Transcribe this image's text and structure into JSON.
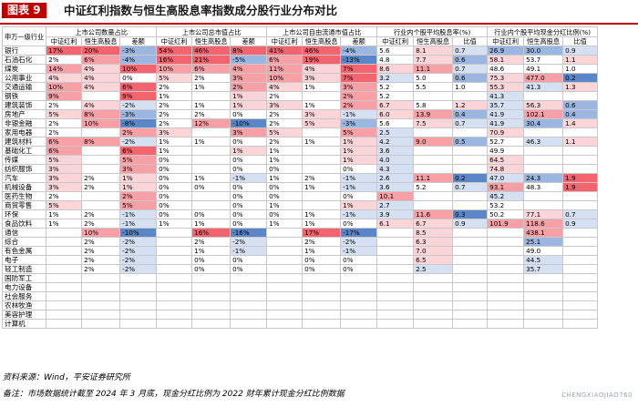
{
  "figure": {
    "label": "图表 9",
    "title": "中证红利指数与恒生高股息率指数成分股行业分布对比"
  },
  "table": {
    "corner_header": "申万一级行业",
    "groups": [
      "上市公司数量占比",
      "上市公司总市值占比",
      "上市公司自由流通市值占比",
      "行业内个股平均股息率(%)",
      "行业内个股平均现金分红比例(%)"
    ],
    "subheaders": [
      "中证红利",
      "恒生高股息",
      "差额",
      "中证红利",
      "恒生高股息",
      "差额",
      "中证红利",
      "恒生高股息",
      "差额",
      "中证红利",
      "恒生高股息",
      "比值",
      "中证红利",
      "恒生高股息",
      "比值"
    ],
    "rows": [
      {
        "industry": "银行",
        "cells": [
          "17%",
          "20%",
          "-3%",
          "54%",
          "46%",
          "8%",
          "41%",
          "46%",
          "-4%",
          "5.6",
          "8.1",
          "0.7",
          "26.9",
          "30.0",
          "0.9"
        ]
      },
      {
        "industry": "石油石化",
        "cells": [
          "2%",
          "6%",
          "-4%",
          "16%",
          "21%",
          "-5%",
          "6%",
          "19%",
          "-13%",
          "4.8",
          "7.7",
          "0.6",
          "58.1",
          "53.7",
          "1.1"
        ]
      },
      {
        "industry": "煤炭",
        "cells": [
          "14%",
          "4%",
          "10%",
          "10%",
          "6%",
          "4%",
          "11%",
          "4%",
          "7%",
          "8.6",
          "11.1",
          "0.7",
          "48.6",
          "49.1",
          "1.0"
        ]
      },
      {
        "industry": "公用事业",
        "cells": [
          "4%",
          "4%",
          "0%",
          "5%",
          "2%",
          "3%",
          "10%",
          "3%",
          "7%",
          "3.2",
          "5.0",
          "0.6",
          "75.3",
          "477.0",
          "0.2"
        ]
      },
      {
        "industry": "交通运输",
        "cells": [
          "10%",
          "4%",
          "6%",
          "2%",
          "1%",
          "2%",
          "4%",
          "1%",
          "3%",
          "5.2",
          "5.5",
          "1.0",
          "55.3",
          "41.3",
          "1.3"
        ]
      },
      {
        "industry": "钢铁",
        "cells": [
          "9%",
          "",
          "9%",
          "1%",
          "",
          "1%",
          "2%",
          "",
          "2%",
          "5.2",
          "",
          "",
          "41.3",
          "",
          ""
        ]
      },
      {
        "industry": "建筑装饰",
        "cells": [
          "2%",
          "4%",
          "-2%",
          "2%",
          "1%",
          "1%",
          "3%",
          "1%",
          "2%",
          "6.7",
          "5.8",
          "1.2",
          "35.7",
          "56.3",
          "0.6"
        ]
      },
      {
        "industry": "房地产",
        "cells": [
          "5%",
          "8%",
          "-3%",
          "2%",
          "2%",
          "0%",
          "2%",
          "3%",
          "-1%",
          "6.0",
          "13.9",
          "0.4",
          "41.9",
          "102.1",
          "0.4"
        ]
      },
      {
        "industry": "非银金融",
        "cells": [
          "2%",
          "10%",
          "-8%",
          "2%",
          "12%",
          "-10%",
          "2%",
          "5%",
          "-3%",
          "5.6",
          "7.5",
          "0.7",
          "41.9",
          "30.4",
          "1.4"
        ]
      },
      {
        "industry": "家用电器",
        "cells": [
          "2%",
          "",
          "2%",
          "3%",
          "",
          "3%",
          "5%",
          "",
          "5%",
          "2.5",
          "",
          "",
          "70.9",
          "",
          ""
        ]
      },
      {
        "industry": "建筑材料",
        "cells": [
          "6%",
          "8%",
          "-2%",
          "1%",
          "1%",
          "0%",
          "2%",
          "1%",
          "1%",
          "4.2",
          "9.0",
          "0.5",
          "52.7",
          "46.3",
          "1.1"
        ]
      },
      {
        "industry": "基础化工",
        "cells": [
          "6%",
          "",
          "6%",
          "1%",
          "",
          "1%",
          "1%",
          "",
          "1%",
          "3.6",
          "",
          "",
          "49.9",
          "",
          ""
        ]
      },
      {
        "industry": "传媒",
        "cells": [
          "5%",
          "",
          "5%",
          "0%",
          "",
          "0%",
          "1%",
          "",
          "1%",
          "4.0",
          "",
          "",
          "64.5",
          "",
          ""
        ]
      },
      {
        "industry": "纺织服饰",
        "cells": [
          "3%",
          "",
          "3%",
          "0%",
          "",
          "0%",
          "0%",
          "",
          "0%",
          "4.3",
          "",
          "",
          "74.8",
          "",
          ""
        ]
      },
      {
        "industry": "汽车",
        "cells": [
          "3%",
          "2%",
          "1%",
          "0%",
          "1%",
          "-1%",
          "1%",
          "2%",
          "-1%",
          "2.6",
          "11.1",
          "0.2",
          "47.0",
          "24.3",
          "1.9"
        ]
      },
      {
        "industry": "机械设备",
        "cells": [
          "3%",
          "2%",
          "1%",
          "0%",
          "0%",
          "0%",
          "0%",
          "1%",
          "-1%",
          "3.6",
          "5.2",
          "0.7",
          "93.1",
          "48.3",
          "1.9"
        ]
      },
      {
        "industry": "医药生物",
        "cells": [
          "2%",
          "",
          "2%",
          "0%",
          "",
          "0%",
          "0%",
          "",
          "0%",
          "10.1",
          "",
          "",
          "45.2",
          "",
          ""
        ]
      },
      {
        "industry": "商贸零售",
        "cells": [
          "5%",
          "",
          "5%",
          "0%",
          "",
          "0%",
          "1%",
          "",
          "1%",
          "2.7",
          "",
          "",
          "53.2",
          "",
          ""
        ]
      },
      {
        "industry": "环保",
        "cells": [
          "1%",
          "2%",
          "-1%",
          "0%",
          "0%",
          "0%",
          "0%",
          "1%",
          "-1%",
          "3.9",
          "11.6",
          "0.3",
          "50.2",
          "77.1",
          "0.7"
        ]
      },
      {
        "industry": "食品饮料",
        "cells": [
          "1%",
          "2%",
          "-1%",
          "1%",
          "1%",
          "0%",
          "1%",
          "1%",
          "0%",
          "6.1",
          "6.7",
          "0.9",
          "101.9",
          "118.6",
          "0.9"
        ]
      },
      {
        "industry": "通信",
        "cells": [
          "",
          "10%",
          "-10%",
          "",
          "16%",
          "-16%",
          "",
          "17%",
          "-17%",
          "",
          "8.5",
          "",
          "",
          "438.1",
          ""
        ]
      },
      {
        "industry": "综合",
        "cells": [
          "",
          "2%",
          "-2%",
          "",
          "2%",
          "-2%",
          "",
          "2%",
          "-2%",
          "",
          "6.3",
          "",
          "",
          "25.1",
          ""
        ]
      },
      {
        "industry": "有色金属",
        "cells": [
          "",
          "2%",
          "-2%",
          "",
          "1%",
          "-1%",
          "",
          "1%",
          "-1%",
          "",
          "7.0",
          "",
          "",
          "49.0",
          ""
        ]
      },
      {
        "industry": "电子",
        "cells": [
          "",
          "2%",
          "-2%",
          "",
          "0%",
          "0%",
          "",
          "0%",
          "0%",
          "",
          "6.5",
          "",
          "",
          "44.5",
          ""
        ]
      },
      {
        "industry": "轻工制造",
        "cells": [
          "",
          "2%",
          "-2%",
          "",
          "0%",
          "0%",
          "",
          "0%",
          "0%",
          "",
          "2.5",
          "",
          "",
          "35.7",
          ""
        ]
      },
      {
        "industry": "国防军工",
        "cells": [
          "",
          "",
          "",
          "",
          "",
          "",
          "",
          "",
          "",
          "",
          "",
          "",
          "",
          "",
          ""
        ]
      },
      {
        "industry": "电力设备",
        "cells": [
          "",
          "",
          "",
          "",
          "",
          "",
          "",
          "",
          "",
          "",
          "",
          "",
          "",
          "",
          ""
        ]
      },
      {
        "industry": "社会服务",
        "cells": [
          "",
          "",
          "",
          "",
          "",
          "",
          "",
          "",
          "",
          "",
          "",
          "",
          "",
          "",
          ""
        ]
      },
      {
        "industry": "农林牧渔",
        "cells": [
          "",
          "",
          "",
          "",
          "",
          "",
          "",
          "",
          "",
          "",
          "",
          "",
          "",
          "",
          ""
        ]
      },
      {
        "industry": "美容护理",
        "cells": [
          "",
          "",
          "",
          "",
          "",
          "",
          "",
          "",
          "",
          "",
          "",
          "",
          "",
          "",
          ""
        ]
      },
      {
        "industry": "计算机",
        "cells": [
          "",
          "",
          "",
          "",
          "",
          "",
          "",
          "",
          "",
          "",
          "",
          "",
          "",
          "",
          ""
        ]
      }
    ]
  },
  "colors": {
    "title_box": "#c00000",
    "red_strong": "#f4646e",
    "red_mid": "#f8a0a6",
    "red_light": "#fcd5d8",
    "blue_strong": "#5b86c8",
    "blue_mid": "#9bb6e0",
    "blue_light": "#d5e1f3"
  },
  "footer": {
    "source": "资料来源：Wind，平安证券研究所",
    "note": "备注：市场数据统计截至 2024 年 3 月底，现金分红比例为 2022 财年累计现金分红比例数据"
  },
  "watermark": "CHENGXIAOJIAO760"
}
